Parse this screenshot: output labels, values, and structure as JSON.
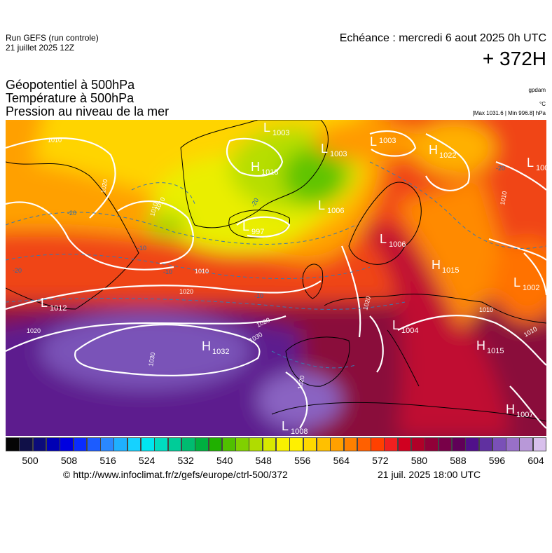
{
  "header": {
    "run_line1": "Run GEFS (run controle)",
    "run_line2": "21 juillet 2025 12Z",
    "echeance": "Echéance : mercredi 6 aout 2025 0h UTC",
    "lead_time": "+ 372H"
  },
  "parameters": [
    "Géopotentiel à 500hPa",
    "Température à 500hPa",
    "Pression au niveau de la mer"
  ],
  "units": {
    "geopotential": "gpdam",
    "temperature": "°C",
    "pressure": "[Max 1031.6 | Min 996.8] hPa"
  },
  "pressure_centers": [
    {
      "type": "L",
      "value": "1003"
    },
    {
      "type": "L",
      "value": "1003"
    },
    {
      "type": "L",
      "value": "1003"
    },
    {
      "type": "H",
      "value": "1018"
    },
    {
      "type": "H",
      "value": "1022"
    },
    {
      "type": "L",
      "value": "100"
    },
    {
      "type": "L",
      "value": "1006"
    },
    {
      "type": "L",
      "value": "997"
    },
    {
      "type": "L",
      "value": "1006"
    },
    {
      "type": "H",
      "value": "1015"
    },
    {
      "type": "L",
      "value": "1002"
    },
    {
      "type": "L",
      "value": "1012"
    },
    {
      "type": "H",
      "value": "1032"
    },
    {
      "type": "L",
      "value": "1004"
    },
    {
      "type": "H",
      "value": "1015"
    },
    {
      "type": "H",
      "value": "1007"
    },
    {
      "type": "L",
      "value": "1008"
    }
  ],
  "isobar_labels": [
    "1010",
    "1020",
    "1010",
    "1020",
    "1010",
    "1020",
    "1020",
    "1030",
    "1030",
    "1020",
    "1020",
    "1010",
    "1010",
    "1010",
    "1010"
  ],
  "temperature_labels": [
    "-20",
    "-20",
    "-20",
    "-10",
    "-10",
    "-10",
    "-20"
  ],
  "color_scale": {
    "ticks": [
      "500",
      "508",
      "516",
      "524",
      "532",
      "540",
      "548",
      "556",
      "564",
      "572",
      "580",
      "588",
      "596",
      "604"
    ],
    "colors": [
      "#050505",
      "#101048",
      "#0b0b7a",
      "#0000b4",
      "#0000e0",
      "#0a2cff",
      "#1c5cff",
      "#2a88ff",
      "#1fb0ff",
      "#16d2ff",
      "#00e6f0",
      "#00dcc0",
      "#00cc98",
      "#00bc70",
      "#00b040",
      "#20b000",
      "#50c000",
      "#80d000",
      "#b0dc00",
      "#d8e800",
      "#f8f000",
      "#fff000",
      "#ffd800",
      "#ffc000",
      "#ffa000",
      "#ff8000",
      "#ff6000",
      "#ff4000",
      "#f02020",
      "#d00020",
      "#b00028",
      "#900038",
      "#780048",
      "#600058",
      "#50108a",
      "#6030a0",
      "#7a50b8",
      "#9870c8",
      "#b898d8",
      "#d8c0ec"
    ]
  },
  "footer": {
    "source": "© http://www.infoclimat.fr/z/gefs/europe/ctrl-500/372",
    "issued": "21 juil. 2025 18:00 UTC"
  }
}
